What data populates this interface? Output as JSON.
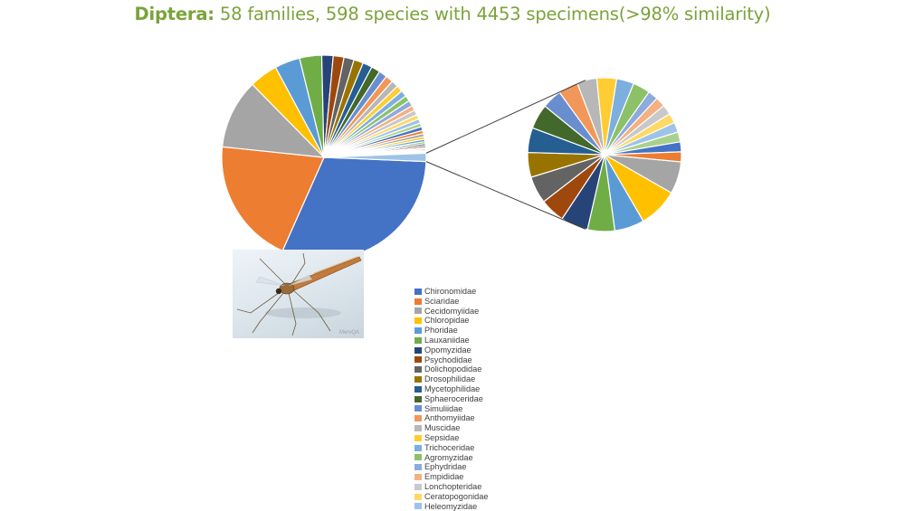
{
  "title": {
    "bold": "Diptera:",
    "rest": " 58 families, 598 species with 4453 specimens(>98% similarity)"
  },
  "photo": {
    "credit": "MervQA",
    "subject": "crane-fly-photo"
  },
  "colors": {
    "palette": [
      "#4472C4",
      "#ED7D31",
      "#A5A5A5",
      "#FFC000",
      "#5B9BD5",
      "#70AD47",
      "#264478",
      "#9E480E",
      "#636363",
      "#997300",
      "#255E91",
      "#43682B",
      "#698ED0",
      "#F1975A",
      "#B7B7B7",
      "#FFCD33",
      "#7CAFDD",
      "#8CC168",
      "#8FAADC",
      "#F4B183",
      "#C9C9C9",
      "#FFD966",
      "#9DC3E6",
      "#A9D18E"
    ],
    "connector": "#404040"
  },
  "legend": [
    "Chironomidae",
    "Sciaridae",
    "Cecidomyiidae",
    "Chloropidae",
    "Phoridae",
    "Lauxaniidae",
    "Opomyzidae",
    "Psychodidae",
    "Dolichopodidae",
    "Drosophilidae",
    "Mycetophilidae",
    "Sphaeroceridae",
    "Simuliidae",
    "Anthomyiidae",
    "Muscidae",
    "Sepsidae",
    "Trichoceridae",
    "Agromyzidae",
    "Ephydridae",
    "Empididae",
    "Lonchopteridae",
    "Ceratopogonidae",
    "Heleomyzidae"
  ],
  "chart_data": {
    "type": "pie",
    "subtype": "pie-of-pie",
    "title": "Diptera: 58 families, 598 species with 4453 specimens(>98% similarity)",
    "legend_position": "bottom-center",
    "main_slices": [
      {
        "name": "Chironomidae",
        "value": 31.0
      },
      {
        "name": "Sciaridae",
        "value": 20.0
      },
      {
        "name": "Cecidomyiidae",
        "value": 11.0
      },
      {
        "name": "Chloropidae",
        "value": 4.5
      },
      {
        "name": "Phoridae",
        "value": 4.0
      },
      {
        "name": "Lauxaniidae",
        "value": 3.5
      },
      {
        "name": "Opomyzidae",
        "value": 1.8
      },
      {
        "name": "Psychodidae",
        "value": 1.7
      },
      {
        "name": "Dolichopodidae",
        "value": 1.6
      },
      {
        "name": "Drosophilidae",
        "value": 1.5
      },
      {
        "name": "Mycetophilidae",
        "value": 1.5
      },
      {
        "name": "Sphaeroceridae",
        "value": 1.4
      },
      {
        "name": "Simuliidae",
        "value": 1.3
      },
      {
        "name": "Anthomyiidae",
        "value": 1.2
      },
      {
        "name": "Muscidae",
        "value": 1.1
      },
      {
        "name": "Sepsidae",
        "value": 1.0
      },
      {
        "name": "Trichoceridae",
        "value": 1.0
      },
      {
        "name": "Agromyzidae",
        "value": 0.9
      },
      {
        "name": "Ephydridae",
        "value": 0.9
      },
      {
        "name": "Empididae",
        "value": 0.8
      },
      {
        "name": "Lonchopteridae",
        "value": 0.8
      },
      {
        "name": "Ceratopogonidae",
        "value": 0.7
      },
      {
        "name": "Heleomyzidae",
        "value": 0.7
      },
      {
        "name": "",
        "value": 0.6
      },
      {
        "name": "",
        "value": 0.6
      },
      {
        "name": "",
        "value": 0.5
      },
      {
        "name": "",
        "value": 0.5
      },
      {
        "name": "",
        "value": 0.4
      },
      {
        "name": "",
        "value": 0.4
      },
      {
        "name": "",
        "value": 0.3
      },
      {
        "name": "",
        "value": 0.3
      },
      {
        "name": "",
        "value": 0.3
      },
      {
        "name": "",
        "value": 0.2
      },
      {
        "name": "",
        "value": 0.2
      },
      {
        "name": "",
        "value": 0.2
      },
      {
        "name": "",
        "value": 0.1
      },
      {
        "name": "",
        "value": 0.1
      },
      {
        "name": "",
        "value": 0.1
      },
      {
        "name": "other (secondary pie)",
        "value": 1.3
      }
    ],
    "secondary_slices": [
      6.5,
      8.0,
      6.0,
      5.5,
      5.5,
      5.0,
      5.5,
      5.0,
      5.0,
      5.0,
      4.0,
      4.0,
      4.0,
      4.0,
      3.5,
      3.5,
      2.0,
      2.0,
      2.0,
      2.0,
      2.0,
      2.0,
      2.0,
      2.0
    ]
  }
}
